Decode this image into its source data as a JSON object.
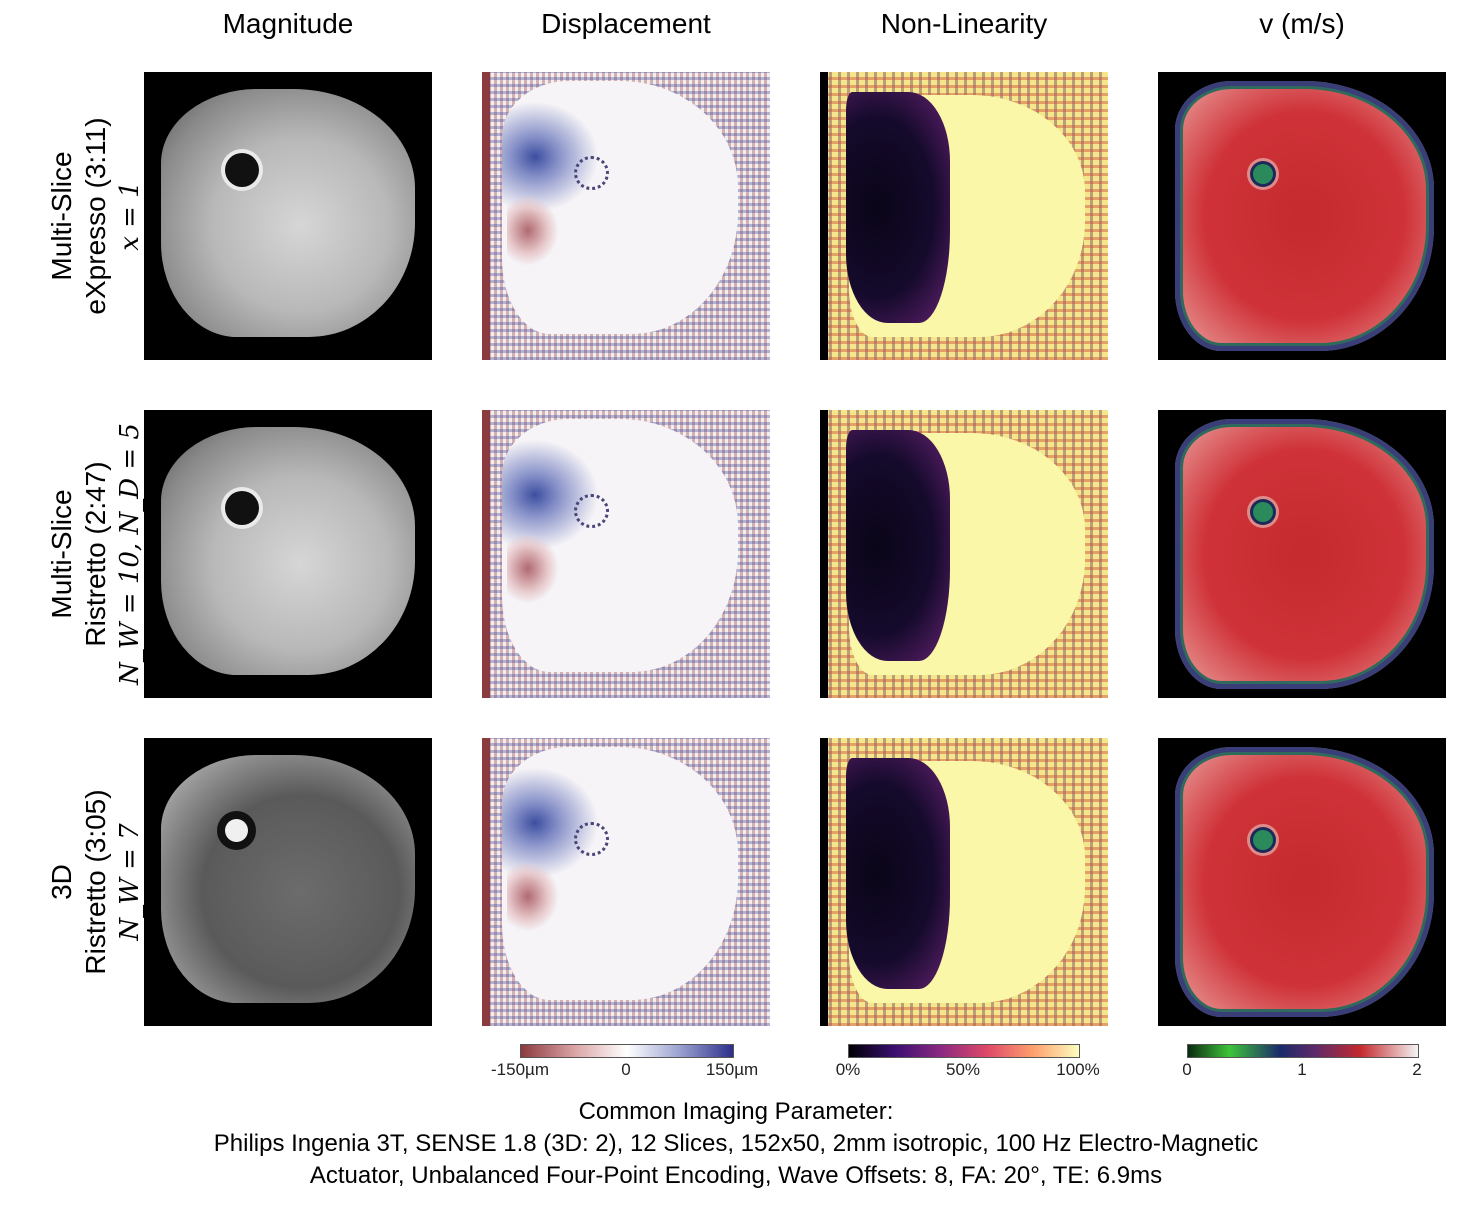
{
  "columns": [
    "Magnitude",
    "Displacement",
    "Non-Linearity",
    "v (m/s)"
  ],
  "rows": [
    {
      "line1": "Multi-Slice",
      "line2": "eXpresso (3:11)",
      "line3": "x = 1"
    },
    {
      "line1": "Multi-Slice",
      "line2": "Ristretto (2:47)",
      "line3": "N_W = 10, N_D = 5"
    },
    {
      "line1": "3D",
      "line2": "Ristretto (3:05)",
      "line3": "N_W = 7"
    }
  ],
  "colorbars": {
    "displacement": {
      "ticks": [
        "-150µm",
        "0",
        "150µm"
      ],
      "colors": [
        "#8b3a3e",
        "#ffffff",
        "#2d2f8a"
      ]
    },
    "nonlinearity": {
      "ticks": [
        "0%",
        "50%",
        "100%"
      ],
      "colors": [
        "#000004",
        "#8c2981",
        "#fcfdbf"
      ]
    },
    "velocity": {
      "ticks": [
        "0",
        "1",
        "2"
      ],
      "colors": [
        "#0b2a10",
        "#3ec43a",
        "#c42a2e",
        "#f4f4f4"
      ]
    }
  },
  "caption": {
    "line1": "Common Imaging Parameter:",
    "line2": "Philips Ingenia 3T, SENSE 1.8 (3D: 2), 12 Slices, 152x50, 2mm isotropic, 100 Hz Electro-Magnetic",
    "line3": "Actuator, Unbalanced Four-Point Encoding, Wave Offsets: 8, FA: 20°, TE: 6.9ms"
  }
}
